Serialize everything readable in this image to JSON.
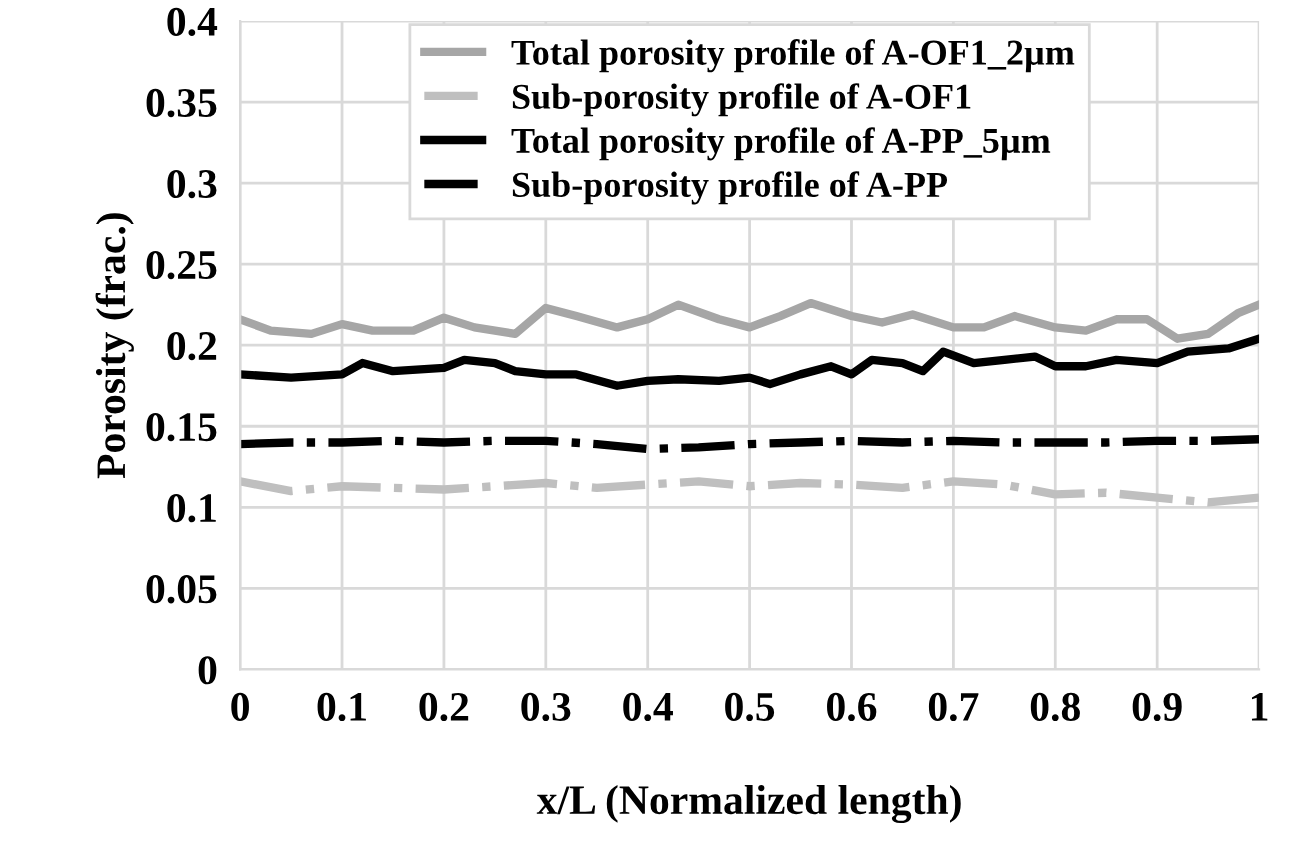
{
  "chart_data": {
    "type": "line",
    "xlabel": "x/L (Normalized length)",
    "ylabel": "Porosity (frac.)",
    "xlim": [
      0,
      1
    ],
    "xticks": [
      0,
      0.1,
      0.2,
      0.3,
      0.4,
      0.5,
      0.6,
      0.7,
      0.8,
      0.9,
      1
    ],
    "ylim": [
      0,
      0.4
    ],
    "yticks": [
      0,
      0.05,
      0.1,
      0.15,
      0.2,
      0.25,
      0.3,
      0.35,
      0.4
    ],
    "grid": true,
    "legend": "top",
    "marker": "none",
    "series": [
      {
        "name": "Total porosity profile of A-OF1_2µm",
        "color": "#a6a6a6",
        "line_style": "solid",
        "x": [
          0,
          0.03,
          0.07,
          0.1,
          0.13,
          0.17,
          0.2,
          0.23,
          0.27,
          0.3,
          0.33,
          0.37,
          0.4,
          0.43,
          0.47,
          0.5,
          0.53,
          0.56,
          0.6,
          0.63,
          0.66,
          0.7,
          0.73,
          0.76,
          0.8,
          0.83,
          0.86,
          0.89,
          0.92,
          0.95,
          0.98,
          1
        ],
        "values": [
          0.216,
          0.209,
          0.207,
          0.213,
          0.209,
          0.209,
          0.217,
          0.211,
          0.207,
          0.223,
          0.218,
          0.211,
          0.216,
          0.225,
          0.216,
          0.211,
          0.218,
          0.226,
          0.218,
          0.214,
          0.219,
          0.211,
          0.211,
          0.218,
          0.211,
          0.209,
          0.216,
          0.216,
          0.204,
          0.207,
          0.22,
          0.225
        ]
      },
      {
        "name": "Sub-porosity profile of A-OF1",
        "color": "#bfbfbf",
        "line_style": "dashdot",
        "x": [
          0,
          0.05,
          0.1,
          0.15,
          0.2,
          0.25,
          0.3,
          0.35,
          0.4,
          0.45,
          0.5,
          0.55,
          0.6,
          0.65,
          0.7,
          0.75,
          0.8,
          0.85,
          0.9,
          0.95,
          1
        ],
        "values": [
          0.116,
          0.11,
          0.113,
          0.112,
          0.111,
          0.113,
          0.115,
          0.112,
          0.114,
          0.116,
          0.113,
          0.115,
          0.114,
          0.112,
          0.116,
          0.114,
          0.108,
          0.109,
          0.106,
          0.103,
          0.106
        ]
      },
      {
        "name": "Total porosity profile of A-PP_5µm",
        "color": "#000000",
        "line_style": "solid",
        "x": [
          0,
          0.05,
          0.1,
          0.12,
          0.15,
          0.2,
          0.22,
          0.25,
          0.27,
          0.3,
          0.33,
          0.37,
          0.4,
          0.43,
          0.47,
          0.5,
          0.52,
          0.55,
          0.58,
          0.6,
          0.62,
          0.65,
          0.67,
          0.69,
          0.72,
          0.75,
          0.78,
          0.8,
          0.83,
          0.86,
          0.9,
          0.93,
          0.97,
          1
        ],
        "values": [
          0.182,
          0.18,
          0.182,
          0.189,
          0.184,
          0.186,
          0.191,
          0.189,
          0.184,
          0.182,
          0.182,
          0.175,
          0.178,
          0.179,
          0.178,
          0.18,
          0.176,
          0.182,
          0.187,
          0.182,
          0.191,
          0.189,
          0.184,
          0.196,
          0.189,
          0.191,
          0.193,
          0.187,
          0.187,
          0.191,
          0.189,
          0.196,
          0.198,
          0.204
        ]
      },
      {
        "name": "Sub-porosity profile of A-PP",
        "color": "#000000",
        "line_style": "dashdot",
        "x": [
          0,
          0.05,
          0.1,
          0.15,
          0.2,
          0.25,
          0.3,
          0.35,
          0.4,
          0.45,
          0.5,
          0.55,
          0.6,
          0.65,
          0.7,
          0.75,
          0.8,
          0.85,
          0.9,
          0.95,
          1
        ],
        "values": [
          0.139,
          0.14,
          0.14,
          0.141,
          0.14,
          0.141,
          0.141,
          0.139,
          0.136,
          0.137,
          0.139,
          0.14,
          0.141,
          0.14,
          0.141,
          0.14,
          0.14,
          0.14,
          0.141,
          0.141,
          0.142
        ]
      }
    ]
  }
}
